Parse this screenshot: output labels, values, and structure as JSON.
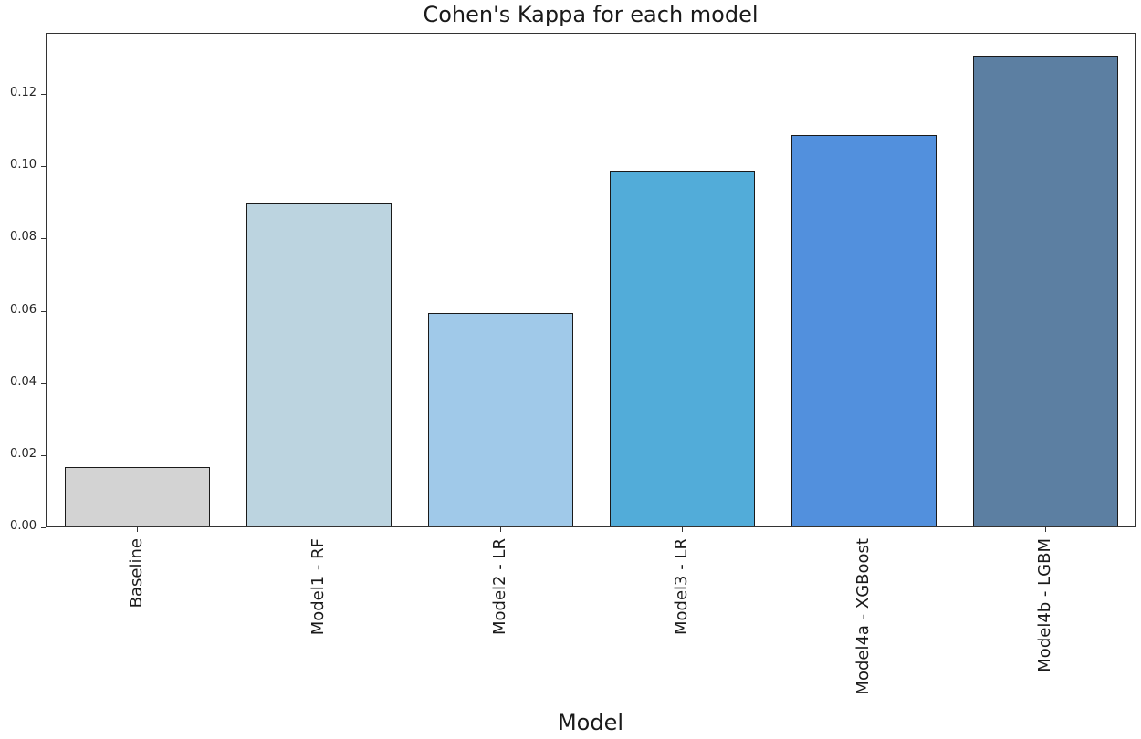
{
  "chart_data": {
    "type": "bar",
    "title": "Cohen's Kappa for each model",
    "xlabel": "Model",
    "ylabel": "",
    "categories": [
      "Baseline",
      "Model1 - RF",
      "Model2 - LR",
      "Model3 - LR",
      "Model4a - XGBoost",
      "Model4b - LGBM"
    ],
    "values": [
      0.0164,
      0.0894,
      0.0591,
      0.0985,
      0.1084,
      0.1304
    ],
    "colors": [
      "#d3d3d3",
      "#bcd4e0",
      "#a0c9e9",
      "#52acd9",
      "#5290dd",
      "#5c7fa2"
    ],
    "ylim": [
      0,
      0.137
    ],
    "yticks": [
      "0.00",
      "0.02",
      "0.04",
      "0.06",
      "0.08",
      "0.10",
      "0.12"
    ],
    "grid": false,
    "legend": null
  }
}
